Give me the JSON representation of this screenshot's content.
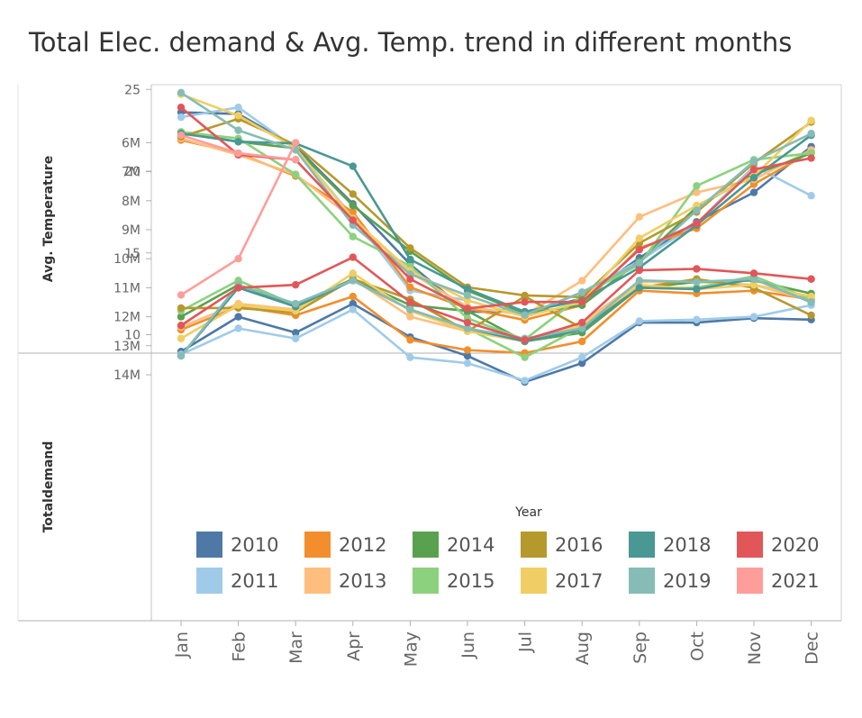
{
  "title": "Total Elec. demand & Avg. Temp. trend in different months",
  "chart_data": {
    "type": "line",
    "title": "Total Elec. demand & Avg. Temp. trend in different months",
    "xlabel": "Year",
    "categories": [
      "Jan",
      "Feb",
      "Mar",
      "Apr",
      "May",
      "Jun",
      "Jul",
      "Aug",
      "Sep",
      "Oct",
      "Nov",
      "Dec"
    ],
    "panels": [
      {
        "id": "temp",
        "ylabel": "Avg. Temperature",
        "ylim": [
          9.2,
          25.8
        ],
        "yticks": [
          10,
          15,
          20,
          25
        ],
        "ytick_labels": [
          "10",
          "15",
          "20",
          "25"
        ]
      },
      {
        "id": "demand",
        "ylabel": "Totaldemand",
        "ylim": [
          5.6,
          14.5
        ],
        "yticks": [
          6,
          7,
          8,
          9,
          10,
          11,
          12,
          13,
          14
        ],
        "ytick_labels": [
          "6M",
          "7M",
          "8M",
          "9M",
          "10M",
          "11M",
          "12M",
          "13M",
          "14M"
        ]
      }
    ],
    "series": [
      {
        "name": "2010",
        "color": "#4e79a7",
        "temp": [
          23.6,
          23.5,
          21.5,
          18.0,
          14.3,
          11.4,
          11.4,
          12.2,
          14.7,
          16.9,
          18.7,
          21.5
        ],
        "demand": [
          13.2,
          12.0,
          12.55,
          11.55,
          12.7,
          13.35,
          14.25,
          13.6,
          12.2,
          12.2,
          12.05,
          12.1
        ]
      },
      {
        "name": "2011",
        "color": "#a0cbe8",
        "temp": [
          23.3,
          23.9,
          21.4,
          17.2,
          12.7,
          12.1,
          11.1,
          12.6,
          14.5,
          16.8,
          20.3,
          18.5
        ],
        "demand": [
          13.3,
          12.4,
          12.75,
          11.75,
          13.4,
          13.6,
          14.2,
          13.4,
          12.15,
          12.1,
          12.0,
          11.6
        ]
      },
      {
        "name": "2012",
        "color": "#f28e2b",
        "temp": [
          21.9,
          21.1,
          19.7,
          17.5,
          12.9,
          11.6,
          10.9,
          11.8,
          15.3,
          16.5,
          19.2,
          21.2
        ],
        "demand": [
          12.45,
          11.65,
          11.95,
          11.3,
          12.8,
          13.15,
          13.25,
          12.85,
          11.1,
          11.2,
          11.1,
          11.4
        ]
      },
      {
        "name": "2013",
        "color": "#ffbe7d",
        "temp": [
          22.0,
          21.0,
          19.8,
          17.1,
          13.8,
          11.7,
          11.2,
          13.3,
          17.2,
          18.7,
          19.5,
          21.3
        ],
        "demand": [
          12.35,
          11.55,
          11.75,
          10.7,
          12.0,
          12.5,
          12.8,
          12.2,
          10.8,
          10.8,
          10.9,
          11.45
        ]
      },
      {
        "name": "2014",
        "color": "#59a14f",
        "temp": [
          22.4,
          21.8,
          21.4,
          17.9,
          15.1,
          12.7,
          11.3,
          11.8,
          14.5,
          17.8,
          19.8,
          21.1
        ],
        "demand": [
          12.0,
          10.9,
          11.6,
          10.7,
          11.6,
          11.8,
          12.85,
          12.55,
          11.0,
          10.8,
          10.75,
          11.2
        ]
      },
      {
        "name": "2015",
        "color": "#8cd17d",
        "temp": [
          22.4,
          22.0,
          19.8,
          16.0,
          14.2,
          11.0,
          9.7,
          12.4,
          14.3,
          19.1,
          20.7,
          21.1
        ],
        "demand": [
          11.8,
          10.75,
          11.6,
          10.75,
          11.75,
          12.4,
          13.4,
          12.35,
          11.0,
          11.0,
          10.6,
          11.4
        ]
      },
      {
        "name": "2016",
        "color": "#b6992d",
        "temp": [
          22.1,
          23.2,
          21.6,
          18.6,
          15.3,
          12.9,
          12.4,
          12.3,
          15.6,
          17.5,
          20.5,
          23.0
        ],
        "demand": [
          11.7,
          11.7,
          11.85,
          10.7,
          11.4,
          12.5,
          11.3,
          12.4,
          11.0,
          10.7,
          11.0,
          11.95
        ]
      },
      {
        "name": "2017",
        "color": "#f1ce63",
        "temp": [
          24.7,
          23.4,
          21.4,
          17.1,
          13.9,
          12.1,
          11.1,
          12.0,
          15.9,
          17.9,
          19.7,
          23.1
        ],
        "demand": [
          12.75,
          11.6,
          11.8,
          10.5,
          11.8,
          12.5,
          12.85,
          12.3,
          10.9,
          11.05,
          10.9,
          11.3
        ]
      },
      {
        "name": "2018",
        "color": "#499894",
        "temp": [
          22.3,
          21.8,
          21.7,
          20.3,
          14.6,
          12.8,
          11.4,
          12.1,
          14.1,
          16.7,
          19.6,
          22.2
        ],
        "demand": [
          13.35,
          11.0,
          11.65,
          10.75,
          11.75,
          12.4,
          12.85,
          12.45,
          11.0,
          11.05,
          10.7,
          11.5
        ]
      },
      {
        "name": "2019",
        "color": "#86bcb6",
        "temp": [
          24.8,
          22.5,
          21.3,
          16.7,
          13.7,
          12.4,
          11.2,
          12.6,
          14.4,
          17.6,
          20.6,
          22.3
        ],
        "demand": [
          13.35,
          10.9,
          11.55,
          10.75,
          11.75,
          12.4,
          12.75,
          12.4,
          10.75,
          10.8,
          10.7,
          11.5
        ]
      },
      {
        "name": "2020",
        "color": "#e15759",
        "temp": [
          23.9,
          21.0,
          20.7,
          17.0,
          13.4,
          11.6,
          12.0,
          12.0,
          15.2,
          16.8,
          20.1,
          20.8
        ],
        "demand": [
          12.3,
          11.0,
          10.9,
          9.95,
          11.5,
          12.2,
          12.8,
          12.2,
          10.4,
          10.35,
          10.5,
          10.7
        ]
      },
      {
        "name": "2021",
        "color": "#ff9d9a",
        "temp": [
          22.2,
          21.1,
          20.7
        ],
        "demand": [
          11.25,
          10.0,
          6.0
        ]
      }
    ],
    "legend_position": "bottom-inside"
  }
}
